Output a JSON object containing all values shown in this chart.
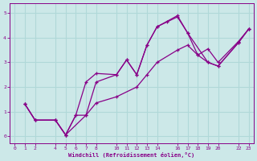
{
  "xlabel": "Windchill (Refroidissement éolien,°C)",
  "background_color": "#cce8e8",
  "line_color": "#880088",
  "grid_color": "#b0d8d8",
  "xlim": [
    -0.5,
    23.5
  ],
  "ylim": [
    -0.3,
    5.4
  ],
  "xticks": [
    0,
    1,
    2,
    4,
    5,
    6,
    7,
    8,
    10,
    11,
    12,
    13,
    14,
    16,
    17,
    18,
    19,
    20,
    22,
    23
  ],
  "yticks": [
    0,
    1,
    2,
    3,
    4,
    5
  ],
  "lines": [
    {
      "x": [
        1,
        2,
        4,
        5,
        7,
        8,
        10,
        11,
        12,
        13,
        14,
        16,
        17,
        19,
        20,
        22,
        23
      ],
      "y": [
        1.3,
        0.65,
        0.65,
        0.05,
        0.85,
        2.2,
        2.5,
        3.1,
        2.5,
        3.7,
        4.45,
        4.9,
        4.2,
        3.0,
        2.85,
        3.8,
        4.35
      ]
    },
    {
      "x": [
        1,
        2,
        4,
        5,
        6,
        7,
        8,
        10,
        11,
        12,
        13,
        14,
        15,
        16,
        17,
        18,
        19,
        20,
        22,
        23
      ],
      "y": [
        1.3,
        0.65,
        0.65,
        0.05,
        0.85,
        2.2,
        2.55,
        2.5,
        3.1,
        2.5,
        3.7,
        4.45,
        4.65,
        4.85,
        4.2,
        3.3,
        3.55,
        3.0,
        3.85,
        4.35
      ]
    },
    {
      "x": [
        1,
        2,
        4,
        5,
        6,
        7,
        8,
        10,
        12,
        13,
        14,
        16,
        17,
        18,
        19,
        20,
        22,
        23
      ],
      "y": [
        1.3,
        0.65,
        0.65,
        0.05,
        0.85,
        0.85,
        1.35,
        1.6,
        2.0,
        2.5,
        3.0,
        3.5,
        3.7,
        3.3,
        3.0,
        2.85,
        3.8,
        4.35
      ]
    }
  ]
}
